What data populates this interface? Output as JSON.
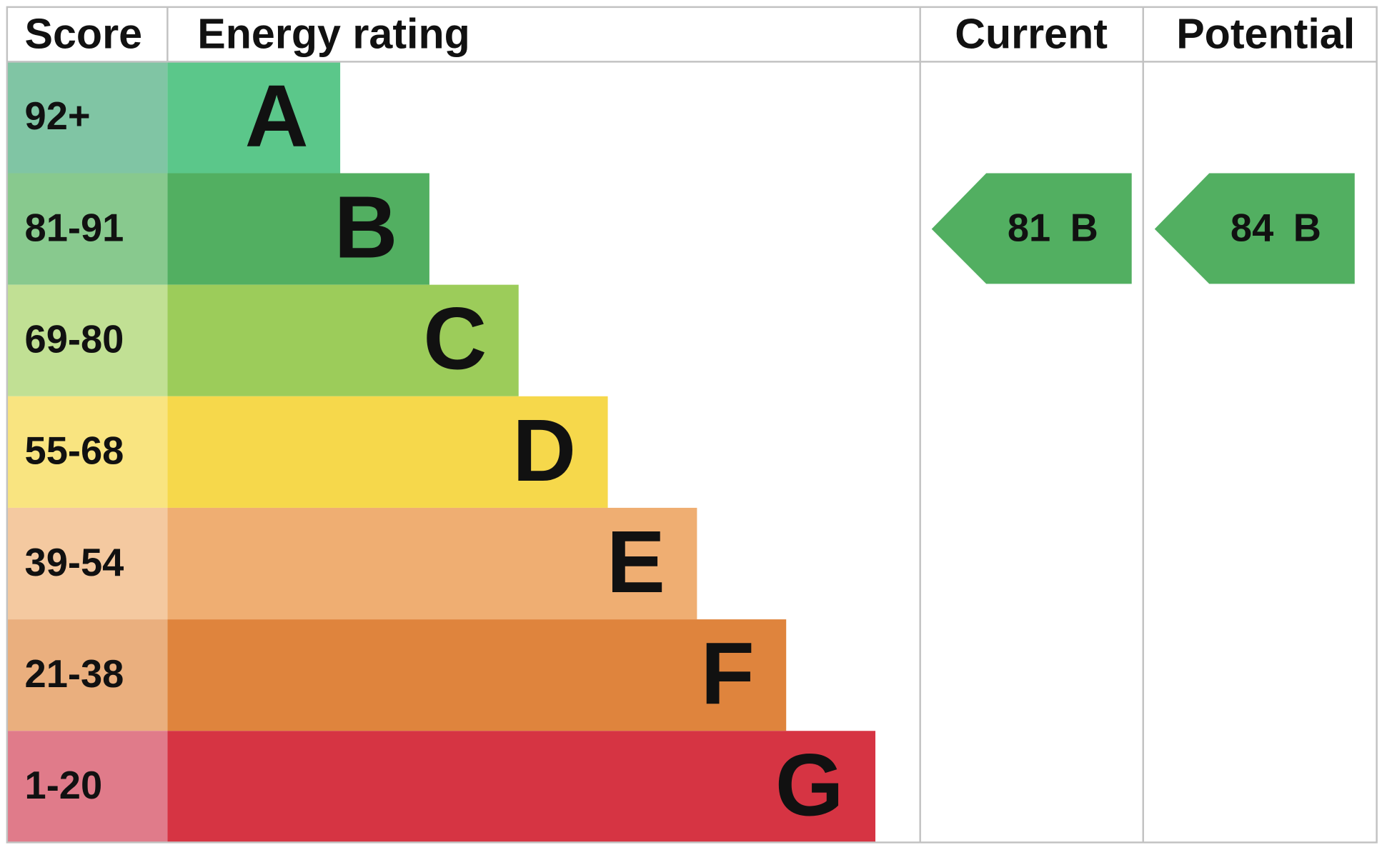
{
  "header": {
    "score": "Score",
    "rating": "Energy rating",
    "current": "Current",
    "potential": "Potential"
  },
  "bands": [
    {
      "score": "92+",
      "letter": "A",
      "score_color": "#80c5a4",
      "color": "#5bc78a"
    },
    {
      "score": "81-91",
      "letter": "B",
      "score_color": "#88c98e",
      "color": "#52af61"
    },
    {
      "score": "69-80",
      "letter": "C",
      "score_color": "#c1e094",
      "color": "#9ccc5a"
    },
    {
      "score": "55-68",
      "letter": "D",
      "score_color": "#f9e480",
      "color": "#f6d84b"
    },
    {
      "score": "39-54",
      "letter": "E",
      "score_color": "#f4c9a0",
      "color": "#efae72"
    },
    {
      "score": "21-38",
      "letter": "F",
      "score_color": "#eaaf7e",
      "color": "#df843d"
    },
    {
      "score": "1-20",
      "letter": "G",
      "score_color": "#e07b8a",
      "color": "#d63443"
    }
  ],
  "current": {
    "value": 81,
    "band": "B"
  },
  "potential": {
    "value": 84,
    "band": "B"
  }
}
